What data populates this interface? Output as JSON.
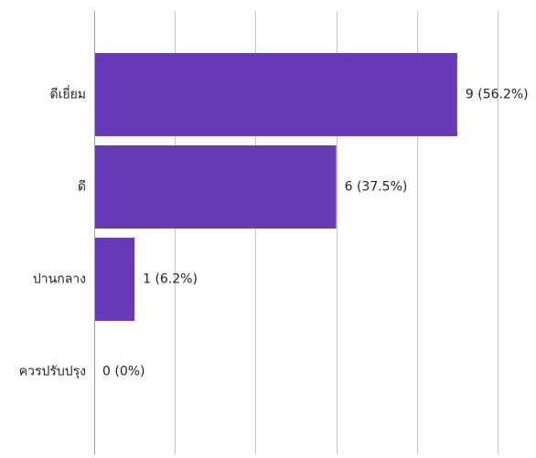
{
  "chart_data": {
    "type": "bar",
    "orientation": "horizontal",
    "categories": [
      "ดีเยี่ยม",
      "ดี",
      "ปานกลาง",
      "ควรปรับปรุง"
    ],
    "values": [
      9,
      6,
      1,
      0
    ],
    "value_labels": [
      "9 (56.2%)",
      "6 (37.5%)",
      "1 (6.2%)",
      "0 (0%)"
    ],
    "xlim": [
      0,
      10
    ],
    "grid": true,
    "legend": "none",
    "bar_color": "#673ab7"
  }
}
